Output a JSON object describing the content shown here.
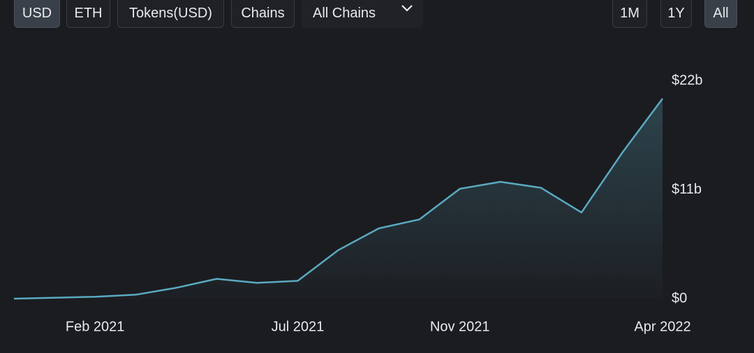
{
  "buttons": {
    "left": [
      "USD",
      "ETH",
      "Tokens(USD)",
      "Chains"
    ],
    "dropdown": "All Chains",
    "right": [
      "1M",
      "1Y",
      "All"
    ]
  },
  "chart_data": {
    "type": "line",
    "x": [
      "2020-12",
      "2021-01",
      "2021-02",
      "2021-03",
      "2021-04",
      "2021-05",
      "2021-06",
      "2021-07",
      "2021-08",
      "2021-09",
      "2021-10",
      "2021-11",
      "2021-12",
      "2022-01",
      "2022-02",
      "2022-03",
      "2022-04"
    ],
    "series": [
      {
        "color": "#5aaac0",
        "values": [
          0,
          0.1,
          0.2,
          0.4,
          1.1,
          2.0,
          1.6,
          1.8,
          4.9,
          7.1,
          8.0,
          11.1,
          11.8,
          11.2,
          8.7,
          14.7,
          20.2
        ]
      }
    ],
    "xlim": [
      "2020-12",
      "2022-04"
    ],
    "xticks": [
      {
        "value": "2021-02",
        "label": "Feb 2021"
      },
      {
        "value": "2021-07",
        "label": "Jul 2021"
      },
      {
        "value": "2021-11",
        "label": "Nov 2021"
      },
      {
        "value": "2022-04",
        "label": "Apr 2022"
      }
    ],
    "ylim": [
      0,
      22
    ],
    "yticks": [
      {
        "value": 0,
        "label": "$0"
      },
      {
        "value": 11,
        "label": "$11b"
      },
      {
        "value": 22,
        "label": "$22b"
      }
    ]
  }
}
